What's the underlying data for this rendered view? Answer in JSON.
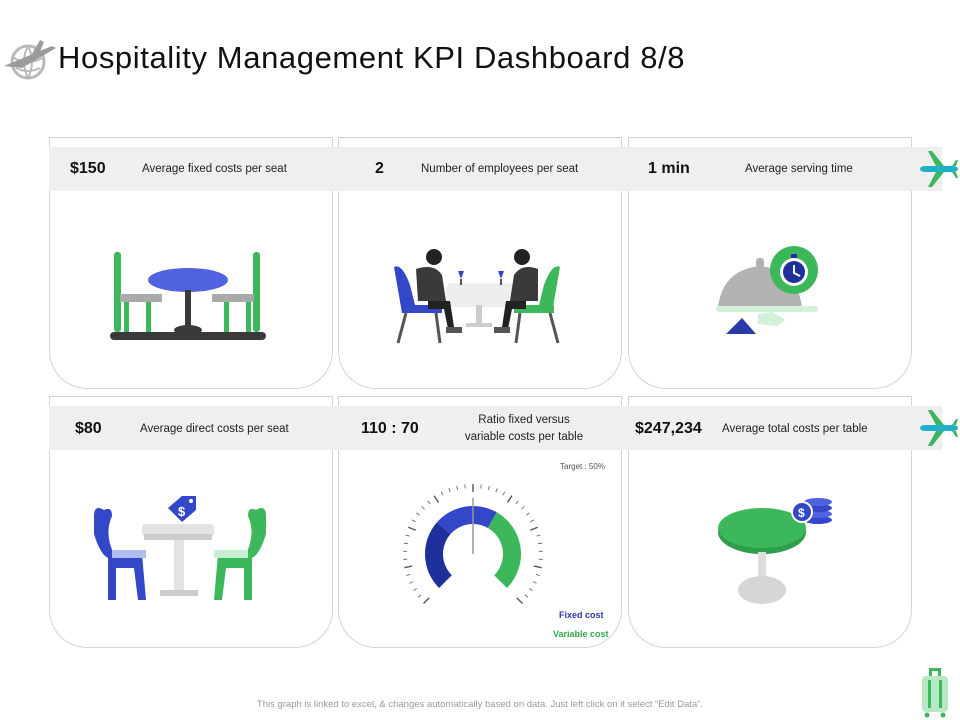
{
  "title": "Hospitality Management KPI Dashboard 8/8",
  "kpis": [
    {
      "value": "$150",
      "label": "Average fixed costs per seat"
    },
    {
      "value": "2",
      "label": "Number of employees per seat"
    },
    {
      "value": "1 min",
      "label": "Average serving time"
    },
    {
      "value": "$80",
      "label": "Average direct costs per seat"
    },
    {
      "value": "110 : 70",
      "label_line1": "Ratio fixed versus",
      "label_line2": "variable costs per table"
    },
    {
      "value": "$247,234",
      "label": "Average total costs per table"
    }
  ],
  "gauge": {
    "target_label": "Target : 50%",
    "legend_fixed": "Fixed cost",
    "legend_variable": "Variable cost",
    "fixed_share": 0.61,
    "variable_share": 0.39,
    "target": 0.5
  },
  "footer": "This graph is linked to excel, & changes automatically based on data. Just left click on it select “Edit Data”.",
  "colors": {
    "green": "#3cb85a",
    "blue": "#3347c9",
    "dark_blue": "#1f2f9c",
    "plane": "#1fb0c9",
    "grey": "#efefef"
  },
  "icons": [
    "globe-plane-icon",
    "airplane-icon",
    "luggage-icon",
    "dining-table-icon",
    "diners-icon",
    "serving-cloche-icon",
    "chairs-price-tag-icon",
    "gauge-icon",
    "round-table-coins-icon"
  ]
}
